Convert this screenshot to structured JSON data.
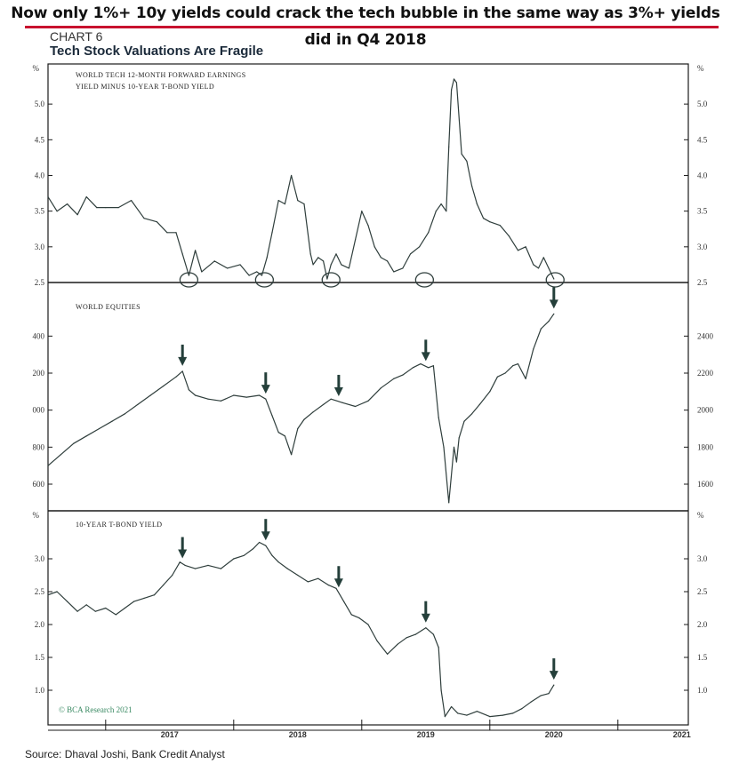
{
  "headline": "Now only 1%+ 10y yields could crack the tech bubble in the same way as 3%+ yields did in Q4 2018",
  "chart_label": "CHART 6",
  "chart_title": "Tech Stock Valuations Are Fragile",
  "source": "Source: Dhaval Joshi, Bank Credit Analyst",
  "copyright": "© BCA Research 2021",
  "colors": {
    "series": "#2f3e3c",
    "arrow": "#243f3a",
    "headline_rule": "#c8102e",
    "copyright": "#3a8a63"
  },
  "x_axis": {
    "ticks": [
      "2017",
      "2018",
      "2019",
      "2020",
      "2021"
    ],
    "range": [
      2016.55,
      2021.55
    ]
  },
  "chart_data": [
    {
      "type": "line",
      "panel": "top",
      "title_lines": [
        "WORLD TECH 12-MONTH FORWARD EARNINGS",
        "YIELD MINUS 10-YEAR T-BOND YIELD"
      ],
      "unit_left": "%",
      "unit_right": "%",
      "ylim": [
        2.5,
        5.4
      ],
      "yticks": [
        "2.5",
        "3.0",
        "3.5",
        "4.0",
        "4.5",
        "5.0"
      ],
      "grid": false,
      "series": [
        {
          "x": [
            2016.55,
            2016.62,
            2016.7,
            2016.78,
            2016.85,
            2016.93,
            2017.0,
            2017.1,
            2017.2,
            2017.3,
            2017.4,
            2017.48,
            2017.55,
            2017.6,
            2017.65,
            2017.7,
            2017.75,
            2017.85,
            2017.95,
            2018.05,
            2018.12,
            2018.18,
            2018.22,
            2018.26,
            2018.3,
            2018.35,
            2018.4,
            2018.45,
            2018.5,
            2018.55,
            2018.6,
            2018.62,
            2018.66,
            2018.7,
            2018.73,
            2018.76,
            2018.8,
            2018.84,
            2018.9,
            2018.95,
            2019.0,
            2019.05,
            2019.1,
            2019.15,
            2019.2,
            2019.25,
            2019.32,
            2019.38,
            2019.45,
            2019.52,
            2019.58,
            2019.62,
            2019.66,
            2019.68,
            2019.7,
            2019.72,
            2019.74,
            2019.78,
            2019.82,
            2019.86,
            2019.9,
            2019.95,
            2020.0,
            2020.08,
            2020.15,
            2020.22,
            2020.28,
            2020.34,
            2020.38,
            2020.42,
            2020.46,
            2020.5
          ],
          "values": [
            3.7,
            3.5,
            3.6,
            3.45,
            3.7,
            3.55,
            3.55,
            3.55,
            3.65,
            3.4,
            3.35,
            3.2,
            3.2,
            2.9,
            2.6,
            2.95,
            2.65,
            2.8,
            2.7,
            2.75,
            2.6,
            2.65,
            2.6,
            2.85,
            3.2,
            3.65,
            3.6,
            4.0,
            3.65,
            3.6,
            2.9,
            2.75,
            2.85,
            2.8,
            2.55,
            2.75,
            2.9,
            2.75,
            2.7,
            3.1,
            3.5,
            3.3,
            3.0,
            2.85,
            2.8,
            2.65,
            2.7,
            2.9,
            3.0,
            3.2,
            3.5,
            3.6,
            3.5,
            4.4,
            5.2,
            5.35,
            5.3,
            4.3,
            4.2,
            3.85,
            3.6,
            3.4,
            3.35,
            3.3,
            3.15,
            2.95,
            3.0,
            2.75,
            2.7,
            2.85,
            2.7,
            2.55
          ]
        }
      ],
      "circled_lows_x": [
        2017.65,
        2018.24,
        2018.76,
        2019.49,
        2020.51
      ]
    },
    {
      "type": "line",
      "panel": "middle",
      "title": "WORLD EQUITIES",
      "ylim": [
        1480,
        2560
      ],
      "yticks_left": [
        "600",
        "800",
        "000",
        "200",
        "400"
      ],
      "yticks_right": [
        "1600",
        "1800",
        "2000",
        "2200",
        "2400"
      ],
      "grid": false,
      "series": [
        {
          "x": [
            2016.55,
            2016.65,
            2016.75,
            2016.85,
            2016.95,
            2017.05,
            2017.15,
            2017.25,
            2017.35,
            2017.45,
            2017.55,
            2017.6,
            2017.65,
            2017.7,
            2017.8,
            2017.9,
            2018.0,
            2018.1,
            2018.2,
            2018.25,
            2018.3,
            2018.35,
            2018.4,
            2018.45,
            2018.5,
            2018.55,
            2018.62,
            2018.7,
            2018.76,
            2018.85,
            2018.95,
            2019.05,
            2019.15,
            2019.25,
            2019.32,
            2019.4,
            2019.46,
            2019.52,
            2019.56,
            2019.6,
            2019.64,
            2019.68,
            2019.72,
            2019.74,
            2019.76,
            2019.8,
            2019.86,
            2019.92,
            2020.0,
            2020.06,
            2020.12,
            2020.18,
            2020.22,
            2020.28,
            2020.34,
            2020.4,
            2020.46,
            2020.5
          ],
          "values": [
            1700,
            1760,
            1820,
            1860,
            1900,
            1940,
            1980,
            2030,
            2080,
            2130,
            2180,
            2210,
            2110,
            2080,
            2060,
            2050,
            2080,
            2070,
            2080,
            2060,
            1970,
            1880,
            1860,
            1760,
            1900,
            1950,
            1990,
            2030,
            2060,
            2040,
            2020,
            2050,
            2120,
            2170,
            2190,
            2230,
            2250,
            2230,
            2240,
            1960,
            1800,
            1500,
            1800,
            1720,
            1850,
            1940,
            1980,
            2030,
            2100,
            2180,
            2200,
            2240,
            2250,
            2170,
            2330,
            2440,
            2480,
            2520
          ]
        }
      ],
      "arrows_x": [
        2017.6,
        2018.25,
        2018.82,
        2019.5,
        2020.5
      ]
    },
    {
      "type": "line",
      "panel": "bottom",
      "title": "10-YEAR T-BOND YIELD",
      "unit_left": "%",
      "unit_right": "%",
      "ylim": [
        0.5,
        3.5
      ],
      "yticks": [
        "1.0",
        "1.5",
        "2.0",
        "2.5",
        "3.0"
      ],
      "grid": false,
      "series": [
        {
          "x": [
            2016.55,
            2016.62,
            2016.7,
            2016.78,
            2016.85,
            2016.92,
            2017.0,
            2017.08,
            2017.15,
            2017.22,
            2017.3,
            2017.38,
            2017.45,
            2017.52,
            2017.58,
            2017.62,
            2017.7,
            2017.8,
            2017.9,
            2018.0,
            2018.08,
            2018.15,
            2018.2,
            2018.25,
            2018.3,
            2018.35,
            2018.42,
            2018.5,
            2018.58,
            2018.66,
            2018.74,
            2018.8,
            2018.86,
            2018.92,
            2018.98,
            2019.05,
            2019.12,
            2019.2,
            2019.28,
            2019.35,
            2019.42,
            2019.5,
            2019.56,
            2019.6,
            2019.62,
            2019.65,
            2019.7,
            2019.75,
            2019.82,
            2019.9,
            2020.0,
            2020.1,
            2020.18,
            2020.25,
            2020.32,
            2020.4,
            2020.46,
            2020.5
          ],
          "values": [
            2.45,
            2.5,
            2.35,
            2.2,
            2.3,
            2.2,
            2.25,
            2.15,
            2.25,
            2.35,
            2.4,
            2.45,
            2.6,
            2.75,
            2.95,
            2.9,
            2.85,
            2.9,
            2.85,
            3.0,
            3.05,
            3.15,
            3.25,
            3.2,
            3.05,
            2.95,
            2.85,
            2.75,
            2.65,
            2.7,
            2.6,
            2.55,
            2.35,
            2.15,
            2.1,
            2.0,
            1.75,
            1.55,
            1.7,
            1.8,
            1.85,
            1.95,
            1.85,
            1.65,
            1.0,
            0.6,
            0.75,
            0.65,
            0.62,
            0.68,
            0.6,
            0.62,
            0.65,
            0.72,
            0.82,
            0.92,
            0.95,
            1.08
          ]
        }
      ],
      "arrows_x": [
        2017.6,
        2018.25,
        2018.82,
        2019.5,
        2020.5
      ]
    }
  ]
}
